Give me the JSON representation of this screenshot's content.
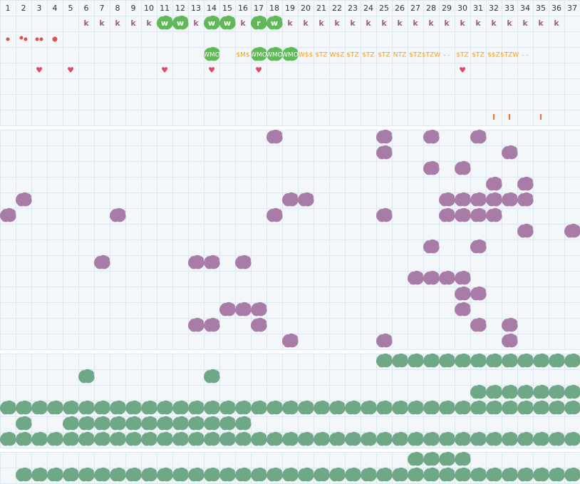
{
  "header": {
    "columns": [
      1,
      2,
      3,
      4,
      5,
      6,
      7,
      8,
      9,
      10,
      11,
      12,
      13,
      14,
      15,
      16,
      17,
      18,
      19,
      20,
      21,
      22,
      23,
      24,
      25,
      26,
      27,
      28,
      29,
      30,
      31,
      32,
      33,
      34,
      35,
      36,
      37
    ]
  },
  "top_rows": [
    {
      "cells": [
        null,
        null,
        null,
        null,
        null,
        "k",
        "k",
        "k",
        "k",
        "k",
        "w",
        "w",
        "k",
        "w",
        "w",
        "k",
        "r",
        "w",
        "k",
        "k",
        "k",
        "k",
        "k",
        "k",
        "k",
        "k",
        "k",
        "k",
        "k",
        "k",
        "k",
        "k",
        "k",
        "k",
        "k",
        "k",
        null
      ]
    },
    {
      "cells": [
        null,
        null,
        null,
        null,
        null,
        null,
        null,
        null,
        null,
        null,
        null,
        null,
        null,
        "WMO",
        null,
        "$M$",
        "WMO",
        "WMO",
        "WMO",
        "W$$",
        "$TZ",
        "W$Z",
        "$TZ",
        "$TZ",
        "$TZ",
        "NTZ",
        "$TZ",
        "$TZW",
        "- -",
        "$TZ",
        "$TZ",
        "$$Z",
        "$TZW",
        "- -",
        null,
        null,
        null
      ]
    },
    {
      "cells": [
        null,
        null,
        "♥",
        null,
        "♥",
        null,
        null,
        null,
        null,
        null,
        "♥",
        null,
        null,
        "♥",
        null,
        null,
        "♥",
        null,
        null,
        null,
        null,
        null,
        null,
        null,
        null,
        null,
        null,
        null,
        null,
        "♥",
        null,
        null,
        null,
        null,
        null,
        null,
        null
      ]
    }
  ]
}
